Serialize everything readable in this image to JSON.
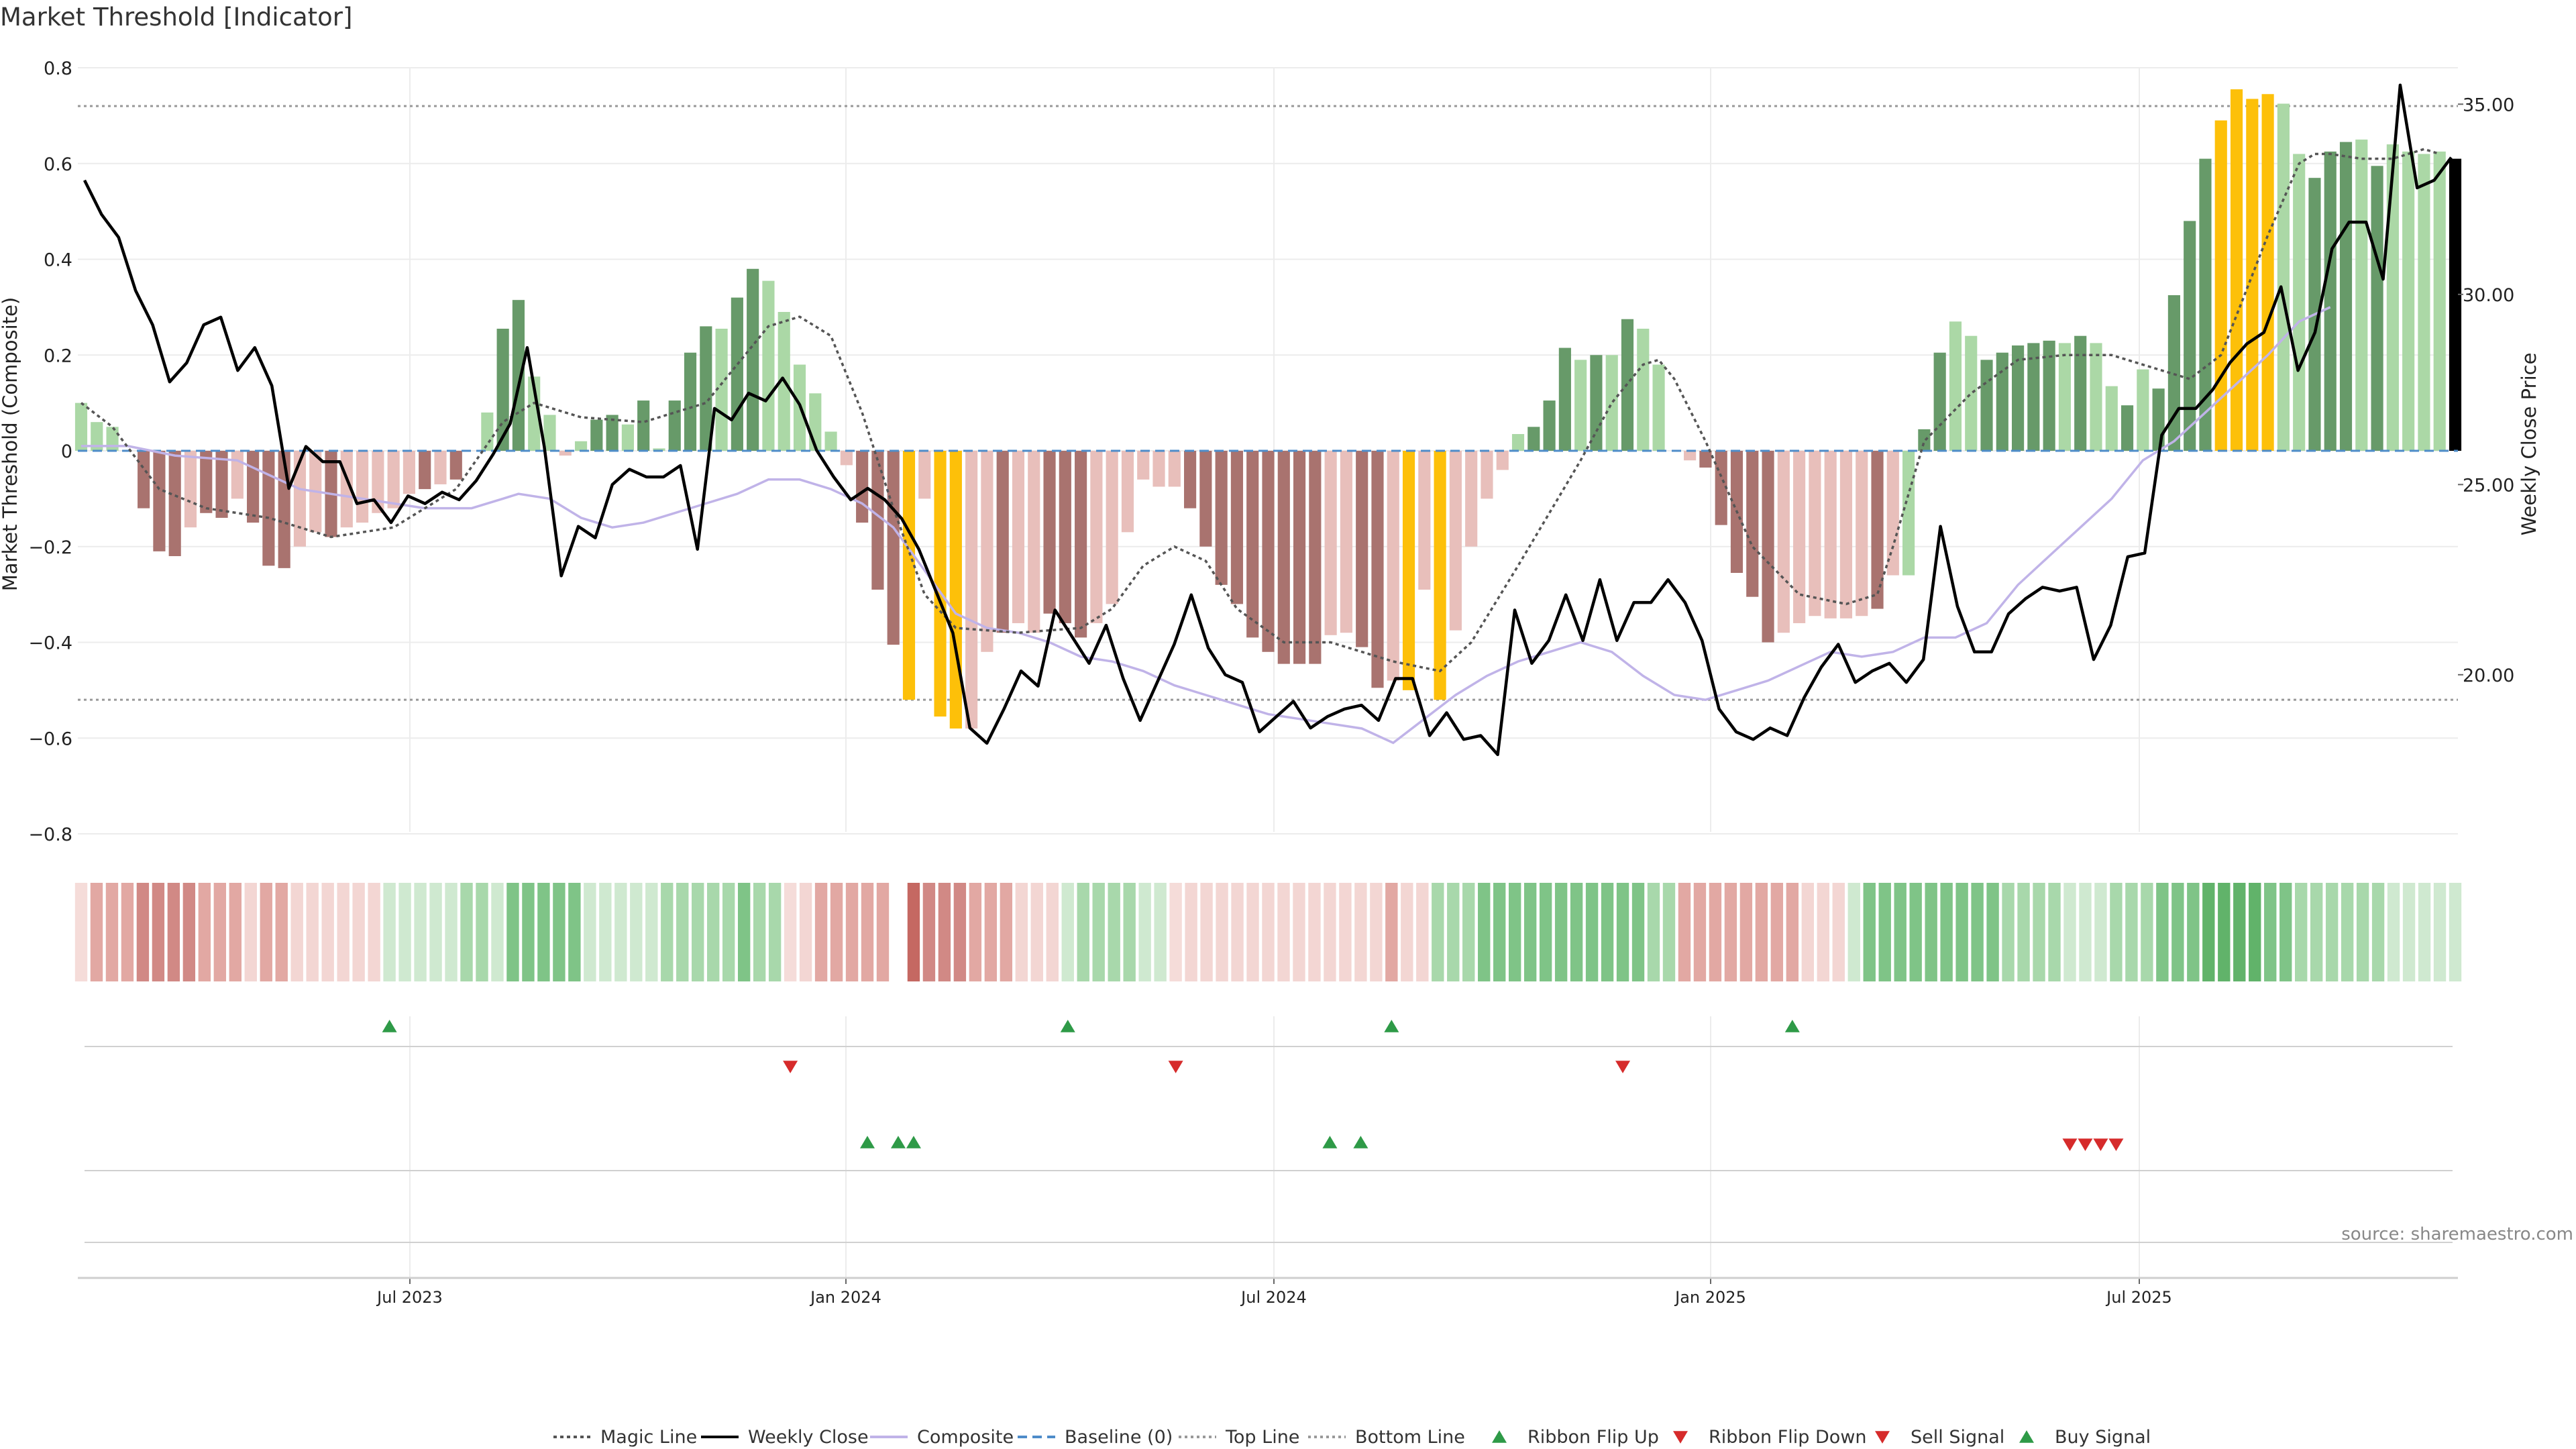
{
  "colors": {
    "dark_green": "#679a69",
    "light_green": "#abd8a6",
    "dark_red": "#a9736f",
    "light_red": "#e8bfbb",
    "gold": "#fdc009",
    "magic": "#555555",
    "price": "#000000",
    "composite": "#c0b3e8",
    "baseline": "#4e8cc9",
    "ref_line": "#999999",
    "up_marker": "#2e9a47",
    "down_marker": "#d62b2b"
  },
  "chart_data": {
    "type": "bar",
    "title": "Market Threshold [Indicator]",
    "ylabel": "Market Threshold (Composite)",
    "y2label": "Weekly Close Price",
    "ylim": [
      -0.8,
      0.8
    ],
    "y2lim": [
      15.87,
      35.94
    ],
    "yticks": [
      "0.8",
      "0.6",
      "0.4",
      "0.2",
      "0",
      "−0.2",
      "−0.4",
      "−0.6",
      "−0.8"
    ],
    "y2ticks": [
      "35.00",
      "30.00",
      "25.00",
      "20.00"
    ],
    "xticks": [
      "Jul 2023",
      "Jan 2024",
      "Jul 2024",
      "Jan 2025",
      "Jul 2025"
    ],
    "source": "source: sharemaestro.com",
    "top_line": 0.72,
    "bottom_line": -0.52,
    "bar_values": [
      0.1,
      0.06,
      0.05,
      0.0,
      -0.12,
      -0.21,
      -0.22,
      -0.16,
      -0.13,
      -0.14,
      -0.1,
      -0.15,
      -0.24,
      -0.245,
      -0.2,
      -0.17,
      -0.18,
      -0.16,
      -0.15,
      -0.13,
      -0.12,
      -0.09,
      -0.08,
      -0.07,
      -0.06,
      0.0,
      0.08,
      0.255,
      0.315,
      0.155,
      0.075,
      -0.01,
      0.02,
      0.065,
      0.075,
      0.055,
      0.105,
      0.005,
      0.105,
      0.205,
      0.26,
      0.255,
      0.32,
      0.38,
      0.355,
      0.29,
      0.18,
      0.12,
      0.04,
      -0.03,
      -0.15,
      -0.29,
      -0.405,
      -0.52,
      -0.1,
      -0.555,
      -0.58,
      -0.58,
      -0.42,
      -0.38,
      -0.36,
      -0.38,
      -0.34,
      -0.36,
      -0.39,
      -0.36,
      -0.32,
      -0.17,
      -0.06,
      -0.075,
      -0.075,
      -0.12,
      -0.2,
      -0.28,
      -0.32,
      -0.39,
      -0.42,
      -0.445,
      -0.445,
      -0.445,
      -0.385,
      -0.38,
      -0.41,
      -0.495,
      -0.48,
      -0.5,
      -0.29,
      -0.52,
      -0.375,
      -0.2,
      -0.1,
      -0.04,
      0.035,
      0.05,
      0.105,
      0.215,
      0.19,
      0.2,
      0.2,
      0.275,
      0.255,
      0.18,
      0.0,
      -0.02,
      -0.035,
      -0.155,
      -0.255,
      -0.305,
      -0.4,
      -0.38,
      -0.36,
      -0.345,
      -0.35,
      -0.35,
      -0.345,
      -0.33,
      -0.26,
      -0.26,
      0.045,
      0.205,
      0.27,
      0.24,
      0.19,
      0.205,
      0.22,
      0.225,
      0.23,
      0.225,
      0.24,
      0.225,
      0.135,
      0.095,
      0.17,
      0.13,
      0.325,
      0.48,
      0.61,
      0.69,
      0.755,
      0.735,
      0.745,
      0.725,
      0.62,
      0.57,
      0.625,
      0.645,
      0.65,
      0.595,
      0.64,
      0.625,
      0.62,
      0.625,
      0.61
    ],
    "bar_colors": [
      "LG",
      "LG",
      "LG",
      "DR",
      "DR",
      "DR",
      "DR",
      "LR",
      "DR",
      "DR",
      "LR",
      "DR",
      "DR",
      "DR",
      "LR",
      "LR",
      "DR",
      "LR",
      "LR",
      "LR",
      "LR",
      "LR",
      "DR",
      "LR",
      "DR",
      "LG",
      "LG",
      "DG",
      "DG",
      "LG",
      "LG",
      "LR",
      "LG",
      "DG",
      "DG",
      "LG",
      "DG",
      "LG",
      "DG",
      "DG",
      "DG",
      "LG",
      "DG",
      "DG",
      "LG",
      "LG",
      "LG",
      "LG",
      "LG",
      "LR",
      "DR",
      "DR",
      "DR",
      "GO",
      "LR",
      "GO",
      "GO",
      "LR",
      "LR",
      "DR",
      "LR",
      "LR",
      "DR",
      "DR",
      "DR",
      "LR",
      "LR",
      "LR",
      "LR",
      "LR",
      "LR",
      "DR",
      "DR",
      "DR",
      "DR",
      "DR",
      "DR",
      "DR",
      "DR",
      "DR",
      "LR",
      "LR",
      "DR",
      "DR",
      "LR",
      "GO",
      "LR",
      "GO",
      "LR",
      "LR",
      "LR",
      "LR",
      "LG",
      "DG",
      "DG",
      "DG",
      "LG",
      "DG",
      "LG",
      "DG",
      "LG",
      "LG",
      "LR",
      "LR",
      "DR",
      "DR",
      "DR",
      "DR",
      "DR",
      "LR",
      "LR",
      "LR",
      "LR",
      "LR",
      "LR",
      "DR",
      "LR",
      "LG",
      "DG",
      "DG",
      "LG",
      "LG",
      "DG",
      "DG",
      "DG",
      "DG",
      "DG",
      "LG",
      "DG",
      "LG",
      "LG",
      "DG",
      "LG",
      "DG",
      "DG",
      "DG",
      "DG",
      "GO",
      "GO",
      "GO",
      "GO",
      "LG",
      "LG",
      "DG",
      "DG",
      "DG",
      "LG",
      "DG",
      "LG",
      "LG",
      "LG",
      "LG"
    ],
    "magic_line": [
      [
        0,
        0.1
      ],
      [
        2,
        0.05
      ],
      [
        5,
        -0.08
      ],
      [
        8,
        -0.12
      ],
      [
        12,
        -0.14
      ],
      [
        16,
        -0.18
      ],
      [
        20,
        -0.16
      ],
      [
        24,
        -0.08
      ],
      [
        27,
        0.06
      ],
      [
        29,
        0.1
      ],
      [
        32,
        0.07
      ],
      [
        36,
        0.06
      ],
      [
        40,
        0.1
      ],
      [
        42,
        0.18
      ],
      [
        44,
        0.26
      ],
      [
        46,
        0.28
      ],
      [
        48,
        0.24
      ],
      [
        50,
        0.08
      ],
      [
        52,
        -0.12
      ],
      [
        54,
        -0.3
      ],
      [
        56,
        -0.37
      ],
      [
        60,
        -0.38
      ],
      [
        64,
        -0.37
      ],
      [
        66,
        -0.33
      ],
      [
        68,
        -0.24
      ],
      [
        70,
        -0.2
      ],
      [
        72,
        -0.23
      ],
      [
        74,
        -0.33
      ],
      [
        77,
        -0.4
      ],
      [
        80,
        -0.4
      ],
      [
        84,
        -0.44
      ],
      [
        87,
        -0.46
      ],
      [
        89,
        -0.4
      ],
      [
        92,
        -0.24
      ],
      [
        96,
        -0.02
      ],
      [
        98,
        0.1
      ],
      [
        100,
        0.18
      ],
      [
        101,
        0.19
      ],
      [
        102,
        0.15
      ],
      [
        104,
        0.02
      ],
      [
        107,
        -0.2
      ],
      [
        110,
        -0.3
      ],
      [
        113,
        -0.32
      ],
      [
        115,
        -0.3
      ],
      [
        116,
        -0.2
      ],
      [
        118,
        0.02
      ],
      [
        121,
        0.12
      ],
      [
        124,
        0.19
      ],
      [
        127,
        0.2
      ],
      [
        130,
        0.2
      ],
      [
        133,
        0.17
      ],
      [
        135,
        0.15
      ],
      [
        137,
        0.2
      ],
      [
        140,
        0.45
      ],
      [
        142,
        0.6
      ],
      [
        143,
        0.62
      ],
      [
        144,
        0.62
      ],
      [
        146,
        0.61
      ],
      [
        148,
        0.61
      ],
      [
        150,
        0.63
      ],
      [
        151,
        0.62
      ]
    ],
    "weekly_close": [
      [
        0,
        33.0
      ],
      [
        1,
        32.1
      ],
      [
        2,
        31.5
      ],
      [
        3,
        30.1
      ],
      [
        4,
        29.2
      ],
      [
        5,
        27.7
      ],
      [
        6,
        28.2
      ],
      [
        7,
        29.2
      ],
      [
        8,
        29.4
      ],
      [
        9,
        28.0
      ],
      [
        10,
        28.6
      ],
      [
        11,
        27.6
      ],
      [
        12,
        24.9
      ],
      [
        13,
        26.0
      ],
      [
        14,
        25.6
      ],
      [
        15,
        25.6
      ],
      [
        16,
        24.5
      ],
      [
        17,
        24.6
      ],
      [
        18,
        24.0
      ],
      [
        19,
        24.7
      ],
      [
        20,
        24.5
      ],
      [
        21,
        24.8
      ],
      [
        22,
        24.6
      ],
      [
        23,
        25.1
      ],
      [
        24,
        25.8
      ],
      [
        25,
        26.6
      ],
      [
        26,
        28.6
      ],
      [
        27,
        26.0
      ],
      [
        28,
        22.6
      ],
      [
        29,
        23.9
      ],
      [
        30,
        23.6
      ],
      [
        31,
        25.0
      ],
      [
        32,
        25.4
      ],
      [
        33,
        25.2
      ],
      [
        34,
        25.2
      ],
      [
        35,
        25.5
      ],
      [
        36,
        23.3
      ],
      [
        37,
        27.0
      ],
      [
        38,
        26.7
      ],
      [
        39,
        27.4
      ],
      [
        40,
        27.2
      ],
      [
        41,
        27.8
      ],
      [
        42,
        27.1
      ],
      [
        43,
        25.9
      ],
      [
        44,
        25.2
      ],
      [
        45,
        24.6
      ],
      [
        46,
        24.9
      ],
      [
        47,
        24.6
      ],
      [
        48,
        24.1
      ],
      [
        49,
        23.3
      ],
      [
        50,
        22.2
      ],
      [
        51,
        21.1
      ],
      [
        52,
        18.6
      ],
      [
        53,
        18.2
      ],
      [
        54,
        19.1
      ],
      [
        55,
        20.1
      ],
      [
        56,
        19.7
      ],
      [
        57,
        21.7
      ],
      [
        58,
        21.0
      ],
      [
        59,
        20.3
      ],
      [
        60,
        21.3
      ],
      [
        61,
        19.9
      ],
      [
        62,
        18.8
      ],
      [
        63,
        19.8
      ],
      [
        64,
        20.8
      ],
      [
        65,
        22.1
      ],
      [
        66,
        20.7
      ],
      [
        67,
        20.0
      ],
      [
        68,
        19.8
      ],
      [
        69,
        18.5
      ],
      [
        70,
        18.9
      ],
      [
        71,
        19.3
      ],
      [
        72,
        18.6
      ],
      [
        73,
        18.9
      ],
      [
        74,
        19.1
      ],
      [
        75,
        19.2
      ],
      [
        76,
        18.8
      ],
      [
        77,
        19.9
      ],
      [
        78,
        19.9
      ],
      [
        79,
        18.4
      ],
      [
        80,
        19.0
      ],
      [
        81,
        18.3
      ],
      [
        82,
        18.4
      ],
      [
        83,
        17.9
      ],
      [
        84,
        21.7
      ],
      [
        85,
        20.3
      ],
      [
        86,
        20.9
      ],
      [
        87,
        22.1
      ],
      [
        88,
        20.9
      ],
      [
        89,
        22.5
      ],
      [
        90,
        20.9
      ],
      [
        91,
        21.9
      ],
      [
        92,
        21.9
      ],
      [
        93,
        22.5
      ],
      [
        94,
        21.9
      ],
      [
        95,
        20.9
      ],
      [
        96,
        19.1
      ],
      [
        97,
        18.5
      ],
      [
        98,
        18.3
      ],
      [
        99,
        18.6
      ],
      [
        100,
        18.4
      ],
      [
        101,
        19.4
      ],
      [
        102,
        20.2
      ],
      [
        103,
        20.8
      ],
      [
        104,
        19.8
      ],
      [
        105,
        20.1
      ],
      [
        106,
        20.3
      ],
      [
        107,
        19.8
      ],
      [
        108,
        20.4
      ],
      [
        109,
        23.9
      ],
      [
        110,
        21.8
      ],
      [
        111,
        20.6
      ],
      [
        112,
        20.6
      ],
      [
        113,
        21.6
      ],
      [
        114,
        22.0
      ],
      [
        115,
        22.3
      ],
      [
        116,
        22.2
      ],
      [
        117,
        22.3
      ],
      [
        118,
        20.4
      ],
      [
        119,
        21.3
      ],
      [
        120,
        23.1
      ],
      [
        121,
        23.2
      ],
      [
        122,
        26.3
      ],
      [
        123,
        27.0
      ],
      [
        124,
        27.0
      ],
      [
        125,
        27.5
      ],
      [
        126,
        28.2
      ],
      [
        127,
        28.7
      ],
      [
        128,
        29.0
      ],
      [
        129,
        30.2
      ],
      [
        130,
        28.0
      ],
      [
        131,
        29.0
      ],
      [
        132,
        31.2
      ],
      [
        133,
        31.9
      ],
      [
        134,
        31.9
      ],
      [
        135,
        30.4
      ],
      [
        136,
        35.5
      ],
      [
        137,
        32.8
      ],
      [
        138,
        33.0
      ],
      [
        139,
        33.6
      ]
    ],
    "composite_line": [
      [
        0,
        0.01
      ],
      [
        3,
        0.01
      ],
      [
        6,
        -0.01
      ],
      [
        10,
        -0.02
      ],
      [
        14,
        -0.08
      ],
      [
        18,
        -0.1
      ],
      [
        22,
        -0.12
      ],
      [
        25,
        -0.12
      ],
      [
        27,
        -0.1
      ],
      [
        28,
        -0.09
      ],
      [
        30,
        -0.1
      ],
      [
        32,
        -0.14
      ],
      [
        34,
        -0.16
      ],
      [
        36,
        -0.15
      ],
      [
        38,
        -0.13
      ],
      [
        40,
        -0.11
      ],
      [
        42,
        -0.09
      ],
      [
        44,
        -0.06
      ],
      [
        46,
        -0.06
      ],
      [
        48,
        -0.08
      ],
      [
        50,
        -0.11
      ],
      [
        52,
        -0.16
      ],
      [
        54,
        -0.25
      ],
      [
        56,
        -0.34
      ],
      [
        58,
        -0.37
      ],
      [
        60,
        -0.38
      ],
      [
        62,
        -0.4
      ],
      [
        64,
        -0.43
      ],
      [
        66,
        -0.44
      ],
      [
        68,
        -0.46
      ],
      [
        70,
        -0.49
      ],
      [
        72,
        -0.51
      ],
      [
        74,
        -0.53
      ],
      [
        76,
        -0.55
      ],
      [
        78,
        -0.56
      ],
      [
        80,
        -0.57
      ],
      [
        82,
        -0.58
      ],
      [
        84,
        -0.61
      ],
      [
        86,
        -0.56
      ],
      [
        88,
        -0.51
      ],
      [
        90,
        -0.47
      ],
      [
        92,
        -0.44
      ],
      [
        94,
        -0.42
      ],
      [
        96,
        -0.4
      ],
      [
        98,
        -0.42
      ],
      [
        100,
        -0.47
      ],
      [
        102,
        -0.51
      ],
      [
        104,
        -0.52
      ],
      [
        106,
        -0.5
      ],
      [
        108,
        -0.48
      ],
      [
        110,
        -0.45
      ],
      [
        112,
        -0.42
      ],
      [
        114,
        -0.43
      ],
      [
        116,
        -0.42
      ],
      [
        118,
        -0.39
      ],
      [
        120,
        -0.39
      ],
      [
        122,
        -0.36
      ],
      [
        124,
        -0.28
      ],
      [
        126,
        -0.22
      ],
      [
        128,
        -0.16
      ],
      [
        130,
        -0.1
      ],
      [
        132,
        -0.02
      ],
      [
        134,
        0.02
      ],
      [
        136,
        0.08
      ],
      [
        138,
        0.14
      ],
      [
        140,
        0.2
      ],
      [
        142,
        0.27
      ],
      [
        144,
        0.3
      ]
    ],
    "ribbon": [
      "LR",
      "R2",
      "R2",
      "R2",
      "R3",
      "R3",
      "R3",
      "R3",
      "R2",
      "R2",
      "R2",
      "R1",
      "R2",
      "R2",
      "R1",
      "R1",
      "R1",
      "R1",
      "R1",
      "R1",
      "G1",
      "G1",
      "G1",
      "G1",
      "G1",
      "G2",
      "G2",
      "G1",
      "G3",
      "G3",
      "G3",
      "G3",
      "G3",
      "G1",
      "G1",
      "G1",
      "G1",
      "G1",
      "G2",
      "G2",
      "G2",
      "G2",
      "G2",
      "G3",
      "G2",
      "G2",
      "LR",
      "R1",
      "R2",
      "R2",
      "R2",
      "R2",
      "R2",
      "X",
      "R4",
      "R3",
      "R3",
      "R3",
      "R2",
      "R2",
      "R2",
      "R1",
      "R1",
      "R1",
      "G1",
      "G2",
      "G2",
      "G2",
      "G2",
      "G1",
      "G1",
      "LR",
      "R1",
      "R1",
      "R1",
      "R1",
      "R1",
      "R1",
      "R1",
      "R1",
      "R1",
      "R1",
      "R1",
      "R1",
      "R1",
      "R2",
      "R1",
      "R1",
      "G2",
      "G2",
      "G2",
      "G3",
      "G3",
      "G3",
      "G3",
      "G3",
      "G3",
      "G3",
      "G3",
      "G3",
      "G3",
      "G3",
      "G2",
      "G2",
      "R2",
      "R2",
      "R2",
      "R2",
      "R2",
      "R2",
      "R2",
      "R2",
      "R1",
      "R1",
      "R1",
      "LG",
      "G3",
      "G3",
      "G3",
      "G3",
      "G3",
      "G3",
      "G3",
      "G3",
      "G3",
      "G2",
      "G2",
      "G2",
      "G2",
      "G1",
      "G1",
      "G1",
      "G2",
      "G2",
      "G2",
      "G3",
      "G3",
      "G3",
      "G4",
      "G4",
      "G4",
      "G4",
      "G3",
      "G3",
      "G2",
      "G2",
      "G2",
      "G2",
      "G2",
      "G2",
      "G1",
      "G1",
      "G1",
      "G1",
      "G1"
    ],
    "ribbon_flip_up": [
      20,
      64,
      85,
      111
    ],
    "ribbon_flip_down": [
      46,
      71,
      100
    ],
    "buy_signal": [
      51,
      53,
      54,
      81,
      83
    ],
    "sell_signal": [
      129,
      130,
      131,
      132
    ],
    "legend": [
      "Magic Line",
      "Weekly Close",
      "Composite",
      "Baseline (0)",
      "Top Line",
      "Bottom Line",
      "Ribbon Flip Up",
      "Ribbon Flip Down",
      "Sell Signal",
      "Buy Signal"
    ]
  }
}
